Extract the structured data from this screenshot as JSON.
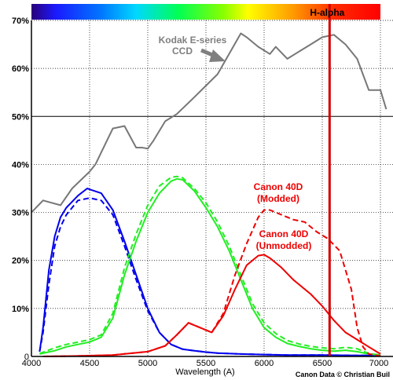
{
  "chart_data": {
    "type": "line",
    "title": "",
    "xlabel": "Wavelength (A)",
    "ylabel": "",
    "xlim": [
      4000,
      7000
    ],
    "ylim": [
      0,
      70
    ],
    "x_ticks": [
      4000,
      4500,
      5000,
      5500,
      6000,
      6500,
      7000
    ],
    "y_ticks": [
      0,
      10,
      20,
      30,
      40,
      50,
      60,
      70
    ],
    "y_tick_labels": [
      "0",
      "10%",
      "20%",
      "30%",
      "40%",
      "50%",
      "60%",
      "70%"
    ],
    "grid": true,
    "spectrum_bar": true,
    "halpha": {
      "label": "H-alpha",
      "wavelength": 6563,
      "color": "#d40000"
    },
    "annotations": [
      {
        "text": "Kodak E-series",
        "x": 4850,
        "y": 65.5,
        "color": "#7f7f7f"
      },
      {
        "text": "CCD",
        "x": 5050,
        "y": 63.0,
        "color": "#7f7f7f"
      },
      {
        "text": "Canon 40D",
        "x": 6150,
        "y": 35.0,
        "color": "#ee0000"
      },
      {
        "text": "(Modded)",
        "x": 6150,
        "y": 32.5,
        "color": "#ee0000"
      },
      {
        "text": "Canon 40D",
        "x": 6200,
        "y": 25.0,
        "color": "#ee0000"
      },
      {
        "text": "(Unmodded)",
        "x": 6200,
        "y": 22.5,
        "color": "#ee0000"
      }
    ],
    "credit": "Canon Data © Christian Buil",
    "series": [
      {
        "color": "#777777",
        "dash": false,
        "width": 2,
        "x": [
          4000,
          4100,
          4250,
          4350,
          4500,
          4550,
          4700,
          4800,
          4900,
          4950,
          5000,
          5050,
          5150,
          5250,
          5400,
          5600,
          5800,
          5850,
          5950,
          6050,
          6100,
          6200,
          6300,
          6400,
          6500,
          6600,
          6700,
          6800,
          6900,
          7000,
          7050
        ],
        "y": [
          30.0,
          32.5,
          31.5,
          35.0,
          38.5,
          40.0,
          47.5,
          48.0,
          43.5,
          43.5,
          43.3,
          45.0,
          49.0,
          50.5,
          54.0,
          58.8,
          67.3,
          66.5,
          64.5,
          63.0,
          64.5,
          62.0,
          63.5,
          65.0,
          66.5,
          67.0,
          65.0,
          62.0,
          55.5,
          55.5,
          51.5
        ]
      },
      {
        "color": "#0000ee",
        "dash": false,
        "width": 2,
        "x": [
          4070,
          4100,
          4150,
          4200,
          4250,
          4300,
          4400,
          4480,
          4500,
          4600,
          4700,
          4800,
          4900,
          5000,
          5100,
          5200,
          5300,
          5400,
          5500,
          5600,
          5800,
          6000,
          6200,
          6500,
          6800,
          7000
        ],
        "y": [
          1.0,
          6.0,
          18.0,
          25.0,
          29.0,
          31.0,
          33.5,
          35.0,
          34.8,
          34.0,
          30.5,
          24.0,
          17.0,
          10.0,
          5.0,
          2.5,
          1.5,
          1.2,
          0.9,
          0.7,
          0.5,
          0.4,
          0.3,
          0.3,
          0.2,
          0.2
        ]
      },
      {
        "color": "#0000ee",
        "dash": true,
        "width": 2,
        "x": [
          4070,
          4100,
          4150,
          4200,
          4250,
          4300,
          4400,
          4500,
          4600,
          4700,
          4800,
          4900,
          5000,
          5100,
          5200,
          5300,
          5400,
          5500,
          5600,
          5800,
          6000,
          6200,
          6500,
          6800,
          7000
        ],
        "y": [
          1.0,
          5.0,
          15.0,
          23.0,
          27.0,
          29.5,
          32.5,
          33.0,
          32.5,
          29.5,
          23.0,
          16.0,
          9.5,
          5.0,
          2.5,
          1.5,
          1.2,
          0.9,
          0.7,
          0.5,
          0.4,
          0.3,
          0.3,
          0.2,
          0.2
        ]
      },
      {
        "color": "#22ee22",
        "dash": false,
        "width": 2,
        "x": [
          4070,
          4200,
          4300,
          4400,
          4500,
          4600,
          4700,
          4800,
          4900,
          5000,
          5100,
          5200,
          5250,
          5300,
          5400,
          5500,
          5600,
          5700,
          5800,
          5900,
          6000,
          6100,
          6200,
          6300,
          6400,
          6500,
          6600,
          6700,
          6800,
          6900,
          7000
        ],
        "y": [
          0.5,
          1.2,
          2.0,
          2.5,
          3.0,
          4.0,
          8.0,
          17.0,
          24.0,
          30.0,
          34.0,
          36.5,
          37.0,
          36.8,
          34.5,
          31.0,
          27.0,
          22.0,
          16.0,
          10.0,
          6.0,
          4.0,
          2.7,
          2.1,
          1.6,
          1.3,
          1.1,
          1.3,
          1.0,
          0.5,
          0.3
        ]
      },
      {
        "color": "#22ee22",
        "dash": true,
        "width": 2,
        "x": [
          4070,
          4200,
          4300,
          4400,
          4500,
          4600,
          4700,
          4800,
          4900,
          5000,
          5100,
          5200,
          5250,
          5300,
          5400,
          5500,
          5600,
          5700,
          5800,
          5900,
          6000,
          6100,
          6200,
          6300,
          6400,
          6500,
          6600,
          6700,
          6800,
          6900,
          7000
        ],
        "y": [
          0.6,
          1.8,
          2.5,
          3.0,
          3.5,
          4.5,
          9.0,
          18.5,
          25.5,
          31.5,
          35.5,
          37.3,
          37.5,
          37.2,
          35.0,
          32.0,
          28.0,
          23.0,
          17.0,
          11.0,
          7.0,
          4.8,
          3.3,
          2.6,
          2.1,
          1.8,
          1.6,
          1.9,
          1.6,
          0.6,
          0.3
        ]
      },
      {
        "color": "#ee0000",
        "dash": false,
        "width": 2,
        "x": [
          4100,
          4400,
          4700,
          5000,
          5150,
          5250,
          5350,
          5450,
          5550,
          5650,
          5750,
          5850,
          5950,
          6000,
          6050,
          6150,
          6250,
          6400,
          6500,
          6600,
          6700,
          6800,
          6900,
          7000
        ],
        "y": [
          0.0,
          0.1,
          0.3,
          1.0,
          2.2,
          4.5,
          7.0,
          6.0,
          5.0,
          8.5,
          14.0,
          19.0,
          21.0,
          21.2,
          20.5,
          18.5,
          16.0,
          13.0,
          10.5,
          7.5,
          5.0,
          3.5,
          2.0,
          0.5
        ]
      },
      {
        "color": "#ee0000",
        "dash": true,
        "width": 2,
        "x": [
          4100,
          4400,
          4700,
          5000,
          5150,
          5250,
          5350,
          5450,
          5550,
          5650,
          5750,
          5850,
          5950,
          6000,
          6050,
          6150,
          6250,
          6350,
          6450,
          6550,
          6650,
          6750,
          6800,
          6850,
          6900,
          7000
        ],
        "y": [
          0.0,
          0.1,
          0.3,
          1.0,
          2.2,
          4.5,
          7.0,
          6.0,
          5.0,
          9.0,
          17.0,
          23.5,
          29.0,
          30.5,
          30.5,
          29.5,
          28.5,
          28.0,
          26.0,
          24.5,
          22.0,
          14.0,
          6.0,
          2.0,
          0.5,
          0.1
        ]
      }
    ]
  }
}
